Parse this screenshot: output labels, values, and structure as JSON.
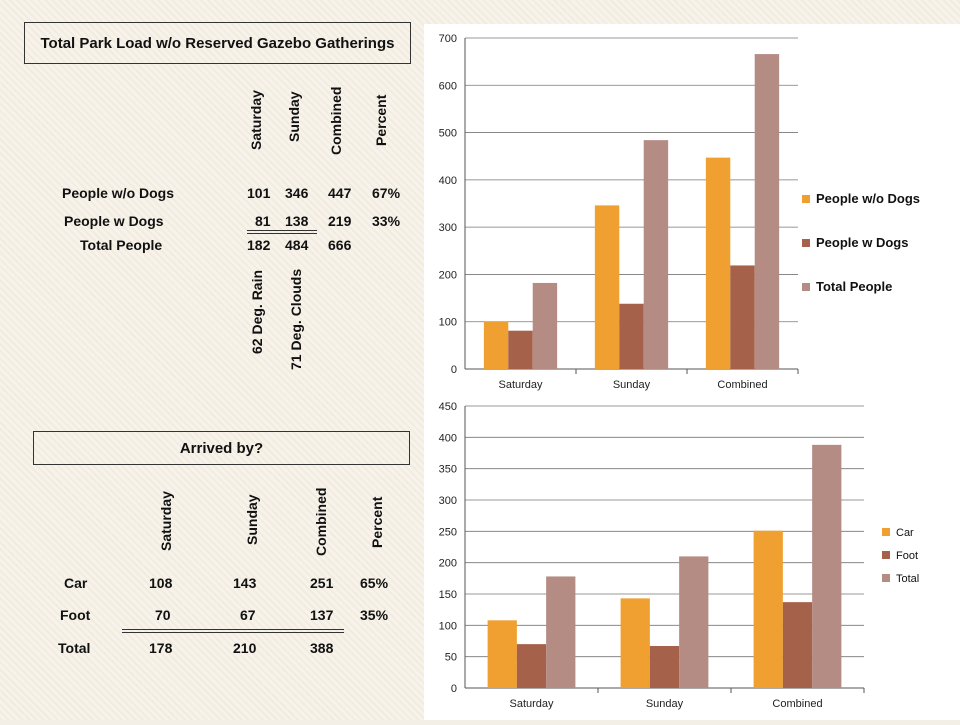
{
  "table1": {
    "title": "Total Park Load w/o Reserved Gazebo Gatherings",
    "headers": [
      "Saturday",
      "Sunday",
      "Combined",
      "Percent"
    ],
    "rows": [
      {
        "label": "People w/o Dogs",
        "values": [
          "101",
          "346",
          "447",
          "67%"
        ]
      },
      {
        "label": "People w Dogs",
        "values": [
          "81",
          "138",
          "219",
          "33%"
        ]
      },
      {
        "label": "Total People",
        "values": [
          "182",
          "484",
          "666",
          ""
        ]
      }
    ],
    "weather": [
      "62 Deg. Rain",
      "71 Deg. Clouds"
    ]
  },
  "table2": {
    "title": "Arrived by?",
    "headers": [
      "Saturday",
      "Sunday",
      "Combined",
      "Percent"
    ],
    "rows": [
      {
        "label": "Car",
        "values": [
          "108",
          "143",
          "251",
          "65%"
        ]
      },
      {
        "label": "Foot",
        "values": [
          "70",
          "67",
          "137",
          "35%"
        ]
      },
      {
        "label": "Total",
        "values": [
          "178",
          "210",
          "388",
          ""
        ]
      }
    ]
  },
  "chart_data": [
    {
      "type": "bar",
      "categories": [
        "Saturday",
        "Sunday",
        "Combined"
      ],
      "series": [
        {
          "name": "People w/o Dogs",
          "values": [
            101,
            346,
            447
          ],
          "color": "#f0a030"
        },
        {
          "name": "People w Dogs",
          "values": [
            81,
            138,
            219
          ],
          "color": "#a5614a"
        },
        {
          "name": "Total People",
          "values": [
            182,
            484,
            666
          ],
          "color": "#b48c84"
        }
      ],
      "ylim": [
        0,
        700
      ],
      "yticks": [
        0,
        100,
        200,
        300,
        400,
        500,
        600,
        700
      ],
      "grid": true,
      "legend_position": "right",
      "legend_bold": true
    },
    {
      "type": "bar",
      "categories": [
        "Saturday",
        "Sunday",
        "Combined"
      ],
      "series": [
        {
          "name": "Car",
          "values": [
            108,
            143,
            251
          ],
          "color": "#f0a030"
        },
        {
          "name": "Foot",
          "values": [
            70,
            67,
            137
          ],
          "color": "#a5614a"
        },
        {
          "name": "Total",
          "values": [
            178,
            210,
            388
          ],
          "color": "#b48c84"
        }
      ],
      "ylim": [
        0,
        450
      ],
      "yticks": [
        0,
        50,
        100,
        150,
        200,
        250,
        300,
        350,
        400,
        450
      ],
      "grid": true,
      "legend_position": "right",
      "legend_bold": false
    }
  ]
}
